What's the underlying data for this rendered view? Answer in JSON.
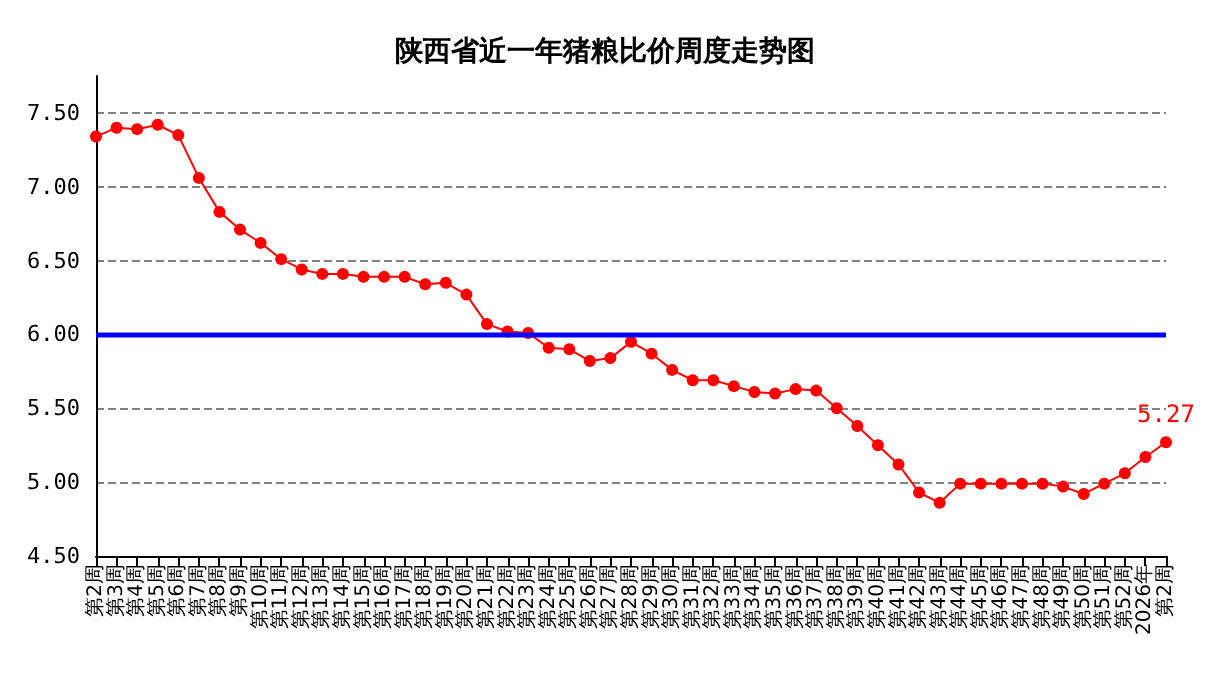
{
  "chart_data": {
    "type": "line",
    "title": "陕西省近一年猪粮比价周度走势图",
    "categories": [
      "第2周",
      "第3周",
      "第4周",
      "第5周",
      "第6周",
      "第7周",
      "第8周",
      "第9周",
      "第10周",
      "第11周",
      "第12周",
      "第13周",
      "第14周",
      "第15周",
      "第16周",
      "第17周",
      "第18周",
      "第19周",
      "第20周",
      "第21周",
      "第22周",
      "第23周",
      "第24周",
      "第25周",
      "第26周",
      "第27周",
      "第28周",
      "第29周",
      "第30周",
      "第31周",
      "第32周",
      "第33周",
      "第34周",
      "第35周",
      "第36周",
      "第37周",
      "第38周",
      "第39周",
      "第40周",
      "第41周",
      "第42周",
      "第43周",
      "第44周",
      "第45周",
      "第46周",
      "第47周",
      "第48周",
      "第49周",
      "第50周",
      "第51周",
      "第52周",
      "2026年",
      "第2周"
    ],
    "series": [
      {
        "color": "#ff0000",
        "values": [
          7.34,
          7.4,
          7.39,
          7.42,
          7.35,
          7.06,
          6.83,
          6.71,
          6.62,
          6.51,
          6.44,
          6.41,
          6.41,
          6.39,
          6.39,
          6.39,
          6.34,
          6.35,
          6.27,
          6.07,
          6.02,
          6.01,
          5.91,
          5.9,
          5.82,
          5.84,
          5.95,
          5.87,
          5.76,
          5.69,
          5.69,
          5.65,
          5.61,
          5.6,
          5.63,
          5.62,
          5.5,
          5.38,
          5.25,
          5.12,
          4.93,
          4.86,
          4.99,
          4.99,
          4.99,
          4.99,
          4.99,
          4.97,
          4.92,
          4.99,
          5.06,
          5.17,
          5.27
        ],
        "value_labels": [
          null,
          null,
          null,
          null,
          null,
          null,
          null,
          null,
          null,
          null,
          null,
          null,
          null,
          null,
          null,
          null,
          null,
          null,
          null,
          null,
          null,
          null,
          null,
          null,
          null,
          null,
          null,
          null,
          null,
          null,
          null,
          null,
          null,
          null,
          null,
          null,
          null,
          null,
          null,
          null,
          null,
          null,
          null,
          null,
          null,
          null,
          null,
          null,
          null,
          null,
          null,
          null,
          "5.27"
        ]
      }
    ],
    "ylim": [
      4.5,
      7.75
    ],
    "yticks": [
      {
        "value": 4.5,
        "label": "4.50"
      },
      {
        "value": 5,
        "label": "5.00"
      },
      {
        "value": 5.5,
        "label": "5.50"
      },
      {
        "value": 6,
        "label": "6.00"
      },
      {
        "value": 6.5,
        "label": "6.50"
      },
      {
        "value": 7,
        "label": "7.00"
      },
      {
        "value": 7.5,
        "label": "7.50"
      }
    ],
    "ref_lines": [
      {
        "axis": "y",
        "value": 6,
        "color": "#0000ff",
        "line_style": "solid"
      }
    ],
    "grid": "y",
    "marker": "circle",
    "line_style": "solid"
  }
}
